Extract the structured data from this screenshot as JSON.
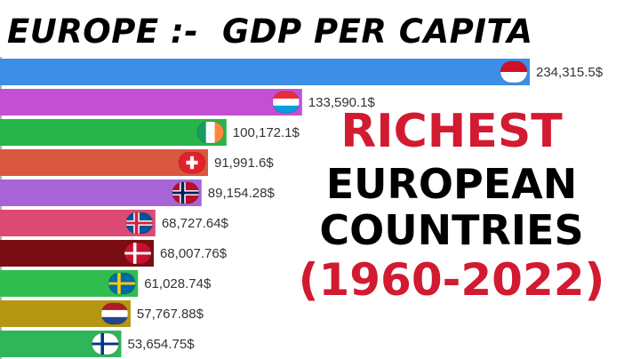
{
  "title": "EUROPE :-  GDP PER CAPITA",
  "overlay": {
    "line1": "RICHEST",
    "line2": "EUROPEAN",
    "line3": "COUNTRIES",
    "line4": "(1960-2022)"
  },
  "chart_data": {
    "type": "bar",
    "orientation": "horizontal",
    "title": "EUROPE :-  GDP PER CAPITA",
    "value_labels": [
      "234,315.5$",
      "133,590.1$",
      "100,172.1$",
      "91,991.6$",
      "89,154.28$",
      "68,727.64$",
      "68,007.76$",
      "61,028.74$",
      "57,767.88$",
      "53,654.75$"
    ],
    "values": [
      234315.5,
      133590.1,
      100172.1,
      91991.6,
      89154.28,
      68727.64,
      68007.76,
      61028.74,
      57767.88,
      53654.75
    ],
    "bar_colors": [
      "#3d8ee6",
      "#c34fd2",
      "#27b54a",
      "#d9583f",
      "#a764d6",
      "#dc4a73",
      "#7a0d12",
      "#2fbd4e",
      "#b59612",
      "#2fb55a"
    ],
    "flags": [
      "monaco-flag-icon",
      "luxembourg-flag-icon",
      "ireland-flag-icon",
      "switzerland-flag-icon",
      "norway-flag-icon",
      "iceland-flag-icon",
      "denmark-flag-icon",
      "sweden-flag-icon",
      "netherlands-flag-icon",
      "finland-flag-icon"
    ]
  }
}
